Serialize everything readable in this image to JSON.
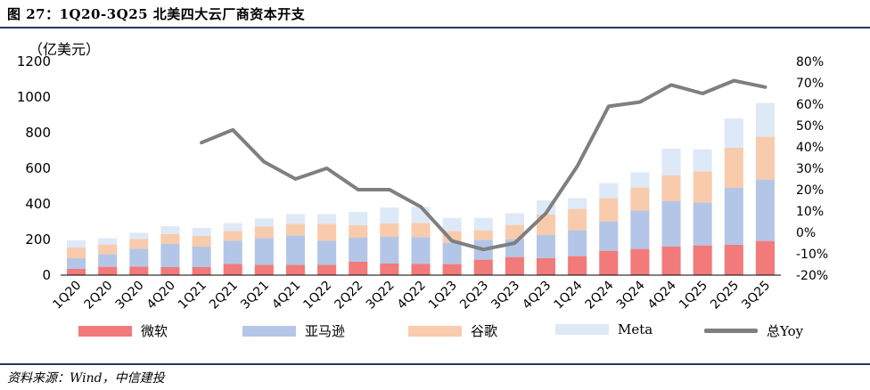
{
  "header": {
    "title": "图 27：1Q20-3Q25 北美四大云厂商资本开支"
  },
  "footer": {
    "source": "资料来源：Wind，中信建投"
  },
  "colors": {
    "msft": "#f27a7a",
    "amzn": "#b4c6e7",
    "googl": "#f8cbad",
    "meta": "#dee9f7",
    "yoy": "#7f7f7f"
  },
  "chart_data": {
    "type": "bar",
    "stacked": true,
    "unit_label": "（亿美元）",
    "categories": [
      "1Q20",
      "2Q20",
      "3Q20",
      "4Q20",
      "1Q21",
      "2Q21",
      "3Q21",
      "4Q21",
      "1Q22",
      "2Q22",
      "3Q22",
      "4Q22",
      "1Q23",
      "2Q23",
      "3Q23",
      "4Q23",
      "1Q24",
      "2Q24",
      "3Q24",
      "4Q24",
      "1Q25",
      "2Q25",
      "3Q25"
    ],
    "series": [
      {
        "name": "微软",
        "key": "msft",
        "values": [
          35,
          47,
          48,
          45,
          45,
          63,
          58,
          58,
          58,
          75,
          65,
          64,
          62,
          87,
          102,
          95,
          107,
          137,
          147,
          160,
          167,
          170,
          192
        ]
      },
      {
        "name": "亚马逊",
        "key": "amzn",
        "values": [
          60,
          70,
          100,
          130,
          115,
          130,
          150,
          165,
          135,
          135,
          150,
          150,
          120,
          110,
          100,
          130,
          145,
          165,
          215,
          255,
          240,
          320,
          345
        ]
      },
      {
        "name": "谷歌",
        "key": "googl",
        "values": [
          60,
          55,
          55,
          55,
          60,
          55,
          65,
          65,
          95,
          70,
          75,
          80,
          65,
          55,
          80,
          115,
          120,
          130,
          130,
          145,
          175,
          225,
          240
        ]
      },
      {
        "name": "Meta",
        "key": "meta",
        "values": [
          40,
          35,
          35,
          45,
          45,
          45,
          45,
          55,
          55,
          75,
          90,
          90,
          75,
          70,
          65,
          80,
          60,
          85,
          85,
          150,
          125,
          165,
          190
        ]
      }
    ],
    "line": {
      "name": "总Yoy",
      "start_index": 4,
      "values": [
        42,
        48,
        33,
        25,
        30,
        20,
        20,
        12,
        -4,
        -8,
        -5,
        9,
        31,
        59,
        61,
        69,
        65,
        71,
        68
      ]
    },
    "y_left": {
      "min": 0,
      "max": 1200,
      "ticks": [
        "0",
        "200",
        "400",
        "600",
        "800",
        "1000",
        "1200"
      ]
    },
    "y_right": {
      "min": -20,
      "max": 80,
      "ticks": [
        "-20%",
        "-10%",
        "0%",
        "10%",
        "20%",
        "30%",
        "40%",
        "50%",
        "60%",
        "70%",
        "80%"
      ]
    },
    "legend": [
      "微软",
      "亚马逊",
      "谷歌",
      "Meta",
      "总Yoy"
    ]
  }
}
